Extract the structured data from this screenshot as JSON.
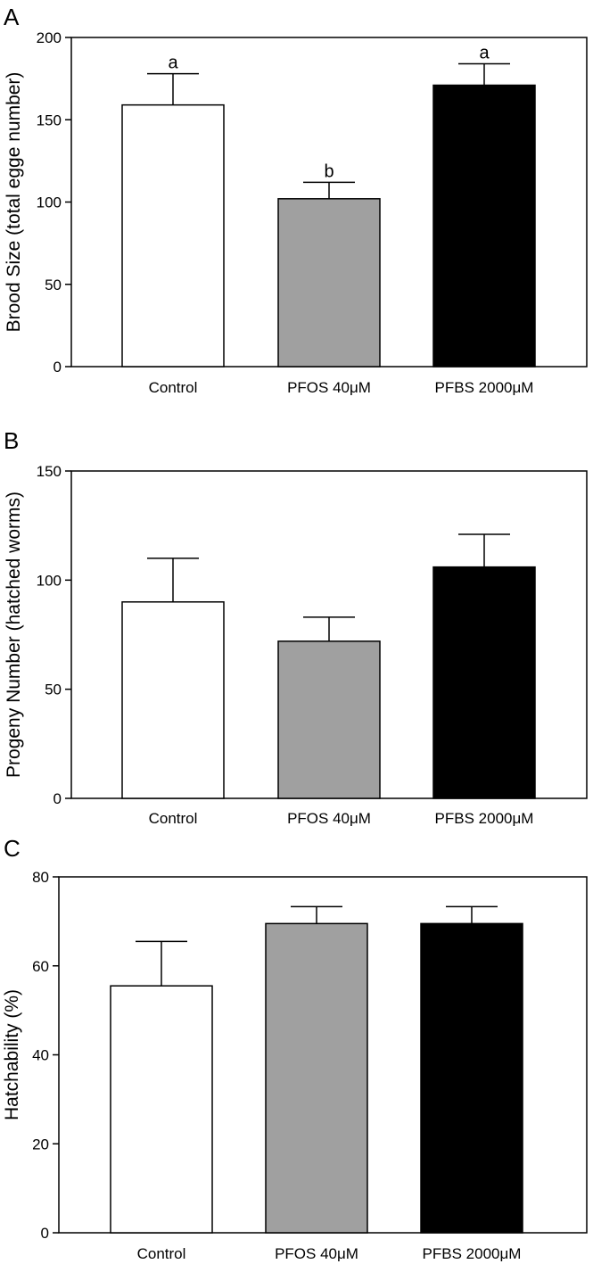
{
  "chart_data": [
    {
      "type": "bar",
      "panel_label": "A",
      "ylabel": "Brood Size (total egge number)",
      "categories": [
        "Control",
        "PFOS 40μM",
        "PFBS 2000μM"
      ],
      "values": [
        159,
        102,
        171
      ],
      "errors": [
        19,
        10,
        13
      ],
      "annotations": [
        "a",
        "b",
        "a"
      ],
      "bar_colors": [
        "#ffffff",
        "#a0a0a0",
        "#000000"
      ],
      "ylim": [
        0,
        200
      ],
      "yticks": [
        "0",
        "50",
        "100",
        "150",
        "200"
      ],
      "grid": false
    },
    {
      "type": "bar",
      "panel_label": "B",
      "ylabel": "Progeny Number (hatched worms)",
      "categories": [
        "Control",
        "PFOS 40μM",
        "PFBS 2000μM"
      ],
      "values": [
        90,
        72,
        106
      ],
      "errors": [
        20,
        11,
        15
      ],
      "bar_colors": [
        "#ffffff",
        "#a0a0a0",
        "#000000"
      ],
      "ylim": [
        0,
        150
      ],
      "yticks": [
        "0",
        "50",
        "100",
        "150"
      ],
      "grid": false
    },
    {
      "type": "bar",
      "panel_label": "C",
      "ylabel": "Hatchability (%)",
      "categories": [
        "Control",
        "PFOS 40μM",
        "PFBS 2000μM"
      ],
      "values": [
        55.5,
        69.5,
        69.5
      ],
      "errors": [
        10,
        3.8,
        3.8
      ],
      "bar_colors": [
        "#ffffff",
        "#a0a0a0",
        "#000000"
      ],
      "ylim": [
        0,
        80
      ],
      "yticks": [
        "0",
        "20",
        "40",
        "60",
        "80"
      ],
      "grid": false
    }
  ]
}
